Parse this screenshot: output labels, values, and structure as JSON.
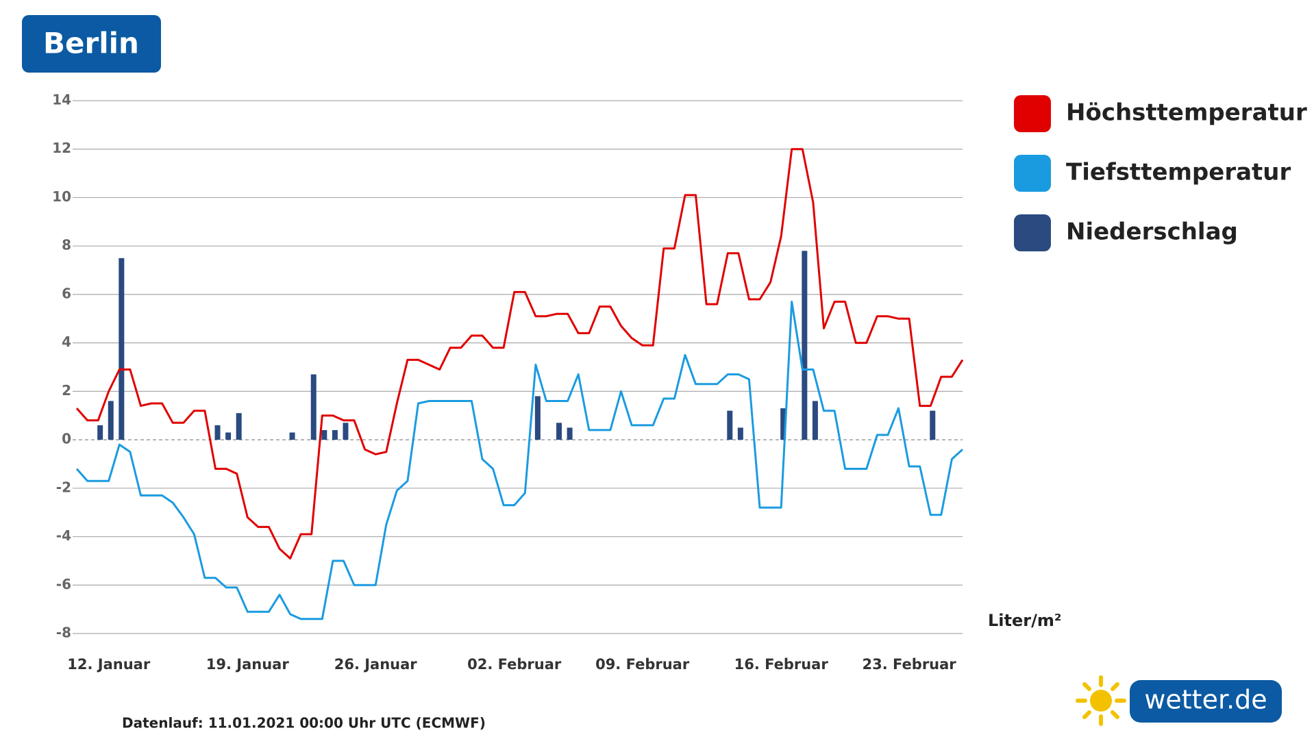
{
  "chart_data": {
    "type": "line",
    "title": "Berlin",
    "categories": [
      null,
      null,
      null,
      "12. Januar",
      null,
      null,
      null,
      null,
      null,
      null,
      null,
      null,
      null,
      null,
      null,
      null,
      "19. Januar",
      null,
      null,
      null,
      null,
      null,
      null,
      null,
      null,
      null,
      null,
      null,
      "26. Januar",
      null,
      null,
      null,
      null,
      null,
      null,
      null,
      null,
      null,
      null,
      null,
      null,
      "02. Februar",
      null,
      null,
      null,
      null,
      null,
      null,
      null,
      null,
      null,
      null,
      null,
      "09. Februar",
      null,
      null,
      null,
      null,
      null,
      null,
      null,
      null,
      null,
      null,
      null,
      null,
      "16. Februar",
      null,
      null,
      null,
      null,
      null,
      null,
      null,
      null,
      null,
      null,
      null,
      "23. Februar",
      null,
      null,
      null,
      null,
      null
    ],
    "series": [
      {
        "name": "Höchsttemperatur",
        "color": "#e00000",
        "type": "line",
        "values": [
          1.3,
          0.8,
          0.8,
          2.0,
          2.9,
          2.9,
          1.4,
          1.5,
          1.5,
          0.7,
          0.7,
          1.2,
          1.2,
          -1.2,
          -1.2,
          -1.4,
          -3.2,
          -3.6,
          -3.6,
          -4.5,
          -4.9,
          -3.9,
          -3.9,
          1.0,
          1.0,
          0.8,
          0.8,
          -0.4,
          -0.6,
          -0.5,
          1.5,
          3.3,
          3.3,
          3.1,
          2.9,
          3.8,
          3.8,
          4.3,
          4.3,
          3.8,
          3.8,
          6.1,
          6.1,
          5.1,
          5.1,
          5.2,
          5.2,
          4.4,
          4.4,
          5.5,
          5.5,
          4.7,
          4.2,
          3.9,
          3.9,
          7.9,
          7.9,
          10.1,
          10.1,
          5.6,
          5.6,
          7.7,
          7.7,
          5.8,
          5.8,
          6.5,
          8.4,
          12.0,
          12.0,
          9.8,
          4.6,
          5.7,
          5.7,
          4.0,
          4.0,
          5.1,
          5.1,
          5.0,
          5.0,
          1.4,
          1.4,
          2.6,
          2.6,
          3.3
        ]
      },
      {
        "name": "Tiefsttemperatur",
        "color": "#1a9be0",
        "type": "line",
        "values": [
          -1.2,
          -1.7,
          -1.7,
          -1.7,
          -0.2,
          -0.5,
          -2.3,
          -2.3,
          -2.3,
          -2.6,
          -3.2,
          -3.9,
          -5.7,
          -5.7,
          -6.1,
          -6.1,
          -7.1,
          -7.1,
          -7.1,
          -6.4,
          -7.2,
          -7.4,
          -7.4,
          -7.4,
          -5.0,
          -5.0,
          -6.0,
          -6.0,
          -6.0,
          -3.5,
          -2.1,
          -1.7,
          1.5,
          1.6,
          1.6,
          1.6,
          1.6,
          1.6,
          -0.8,
          -1.2,
          -2.7,
          -2.7,
          -2.2,
          3.1,
          1.6,
          1.6,
          1.6,
          2.7,
          0.4,
          0.4,
          0.4,
          2.0,
          0.6,
          0.6,
          0.6,
          1.7,
          1.7,
          3.5,
          2.3,
          2.3,
          2.3,
          2.7,
          2.7,
          2.5,
          -2.8,
          -2.8,
          -2.8,
          5.7,
          2.9,
          2.9,
          1.2,
          1.2,
          -1.2,
          -1.2,
          -1.2,
          0.2,
          0.2,
          1.3,
          -1.1,
          -1.1,
          -3.1,
          -3.1,
          -0.8,
          -0.4
        ]
      },
      {
        "name": "Niederschlag",
        "color": "#2a4a80",
        "type": "bar",
        "values": [
          null,
          null,
          0.6,
          1.6,
          7.5,
          null,
          null,
          null,
          null,
          null,
          null,
          null,
          null,
          0.6,
          0.3,
          1.1,
          null,
          null,
          null,
          null,
          0.3,
          null,
          2.7,
          0.4,
          0.4,
          0.7,
          null,
          null,
          null,
          null,
          null,
          null,
          null,
          null,
          null,
          null,
          null,
          null,
          null,
          null,
          null,
          null,
          null,
          1.8,
          null,
          0.7,
          0.5,
          null,
          null,
          null,
          null,
          null,
          null,
          null,
          null,
          null,
          null,
          null,
          null,
          null,
          null,
          1.2,
          0.5,
          null,
          null,
          null,
          1.3,
          null,
          7.8,
          1.6,
          null,
          null,
          null,
          null,
          null,
          null,
          null,
          null,
          null,
          null,
          1.2,
          null,
          null,
          null
        ]
      }
    ],
    "ylim": [
      -8,
      14
    ],
    "yticks": [
      -8,
      -6,
      -4,
      -2,
      0,
      2,
      4,
      6,
      8,
      10,
      12,
      14
    ],
    "grid": true,
    "unit_label": "Liter/m²",
    "footnote": "Datenlauf: 11.01.2021 00:00 Uhr UTC (ECMWF)",
    "logo": "wetter.de"
  }
}
